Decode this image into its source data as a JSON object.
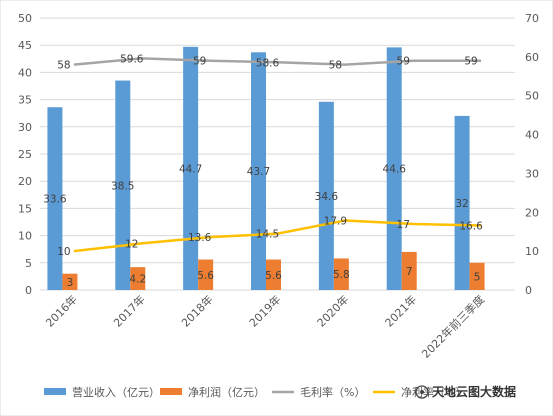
{
  "chart_data": {
    "type": "bar",
    "categories": [
      "2016年",
      "2017年",
      "2018年",
      "2019年",
      "2020年",
      "2021年",
      "2022年前三季度"
    ],
    "series": [
      {
        "name": "营业收入（亿元）",
        "type": "bar",
        "axis": "left",
        "color": "#5B9BD5",
        "values": [
          33.6,
          38.5,
          44.7,
          43.7,
          34.6,
          44.6,
          32
        ]
      },
      {
        "name": "净利润（亿元）",
        "type": "bar",
        "axis": "left",
        "color": "#ED7D31",
        "values": [
          3,
          4.2,
          5.6,
          5.6,
          5.8,
          7,
          5
        ]
      },
      {
        "name": "毛利率（%）",
        "type": "line",
        "axis": "right",
        "color": "#A5A5A5",
        "values": [
          58,
          59.6,
          59,
          58.6,
          58,
          59,
          59
        ]
      },
      {
        "name": "净利率（%）",
        "type": "line",
        "axis": "right",
        "color": "#FFC000",
        "values": [
          10,
          12,
          13.6,
          14.5,
          17.9,
          17,
          16.6
        ]
      }
    ],
    "left_axis": {
      "ylim": [
        0,
        50
      ],
      "ticks": [
        "0",
        "5",
        "10",
        "15",
        "20",
        "25",
        "30",
        "35",
        "40",
        "45",
        "50"
      ]
    },
    "right_axis": {
      "ylim": [
        0,
        70
      ],
      "ticks": [
        "0",
        "10",
        "20",
        "30",
        "40",
        "50",
        "60",
        "70"
      ]
    },
    "grid": true,
    "legend_position": "bottom"
  },
  "watermark": {
    "text": "天地云图大数据"
  }
}
